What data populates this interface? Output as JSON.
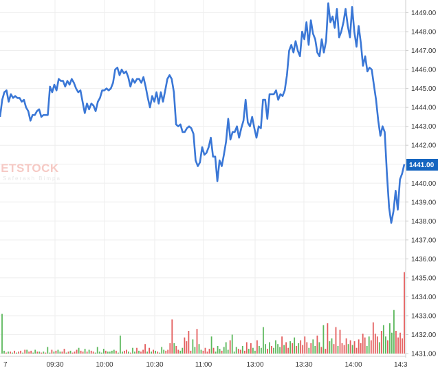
{
  "chart_data": {
    "type": "line",
    "title": "",
    "xlabel": "",
    "ylabel": "",
    "ylim": [
      1431,
      1449.5
    ],
    "y_ticks": [
      "1431.00",
      "1432.00",
      "1433.00",
      "1434.00",
      "1435.00",
      "1436.00",
      "1437.00",
      "1438.00",
      "1439.00",
      "1440.00",
      "1441.00",
      "1442.00",
      "1443.00",
      "1444.00",
      "1445.00",
      "1446.00",
      "1447.00",
      "1448.00",
      "1449.00"
    ],
    "x_ticks": [
      "09:30",
      "10:00",
      "10:30",
      "11:00",
      "13:00",
      "13:30",
      "14:00"
    ],
    "x_tick_edge_left": "7",
    "x_tick_edge_right": "14:3",
    "last_price_label": "1441.00",
    "grid": true,
    "line_color": "#3a77d6",
    "volume_up_color": "#5cb85c",
    "volume_down_color": "#e35d5d",
    "series": [
      {
        "values": [
          1443.5,
          1444.4,
          1444.8,
          1444.9,
          1444.3,
          1444.7,
          1444.5,
          1444.6,
          1444.5,
          1444.5,
          1444.3,
          1444.4,
          1444.0,
          1443.8,
          1443.3,
          1443.6,
          1443.6,
          1443.8,
          1443.9,
          1443.5,
          1443.6,
          1443.6,
          1443.6,
          1445.1,
          1444.8,
          1445.2,
          1444.9,
          1445.5,
          1445.4,
          1445.4,
          1445.1,
          1445.4,
          1445.2,
          1445.5,
          1445.3,
          1445.0,
          1444.8,
          1444.9,
          1444.3,
          1443.7,
          1444.2,
          1443.9,
          1444.2,
          1444.1,
          1443.8,
          1444.3,
          1444.5,
          1444.9,
          1444.9,
          1445.0,
          1444.9,
          1445.0,
          1445.3,
          1446.0,
          1446.1,
          1445.7,
          1446.0,
          1445.8,
          1445.9,
          1445.6,
          1445.1,
          1445.5,
          1445.3,
          1445.5,
          1445.5,
          1445.3,
          1445.6,
          1445.1,
          1444.5,
          1444.0,
          1444.6,
          1444.3,
          1444.8,
          1444.2,
          1444.8,
          1444.3,
          1444.9,
          1445.5,
          1445.7,
          1445.5,
          1444.8,
          1443.1,
          1443.0,
          1443.1,
          1442.7,
          1442.7,
          1442.9,
          1443.0,
          1442.9,
          1442.6,
          1441.2,
          1440.9,
          1441.1,
          1441.9,
          1441.5,
          1441.6,
          1441.9,
          1442.4,
          1441.4,
          1441.4,
          1440.1,
          1441.2,
          1440.9,
          1441.5,
          1442.2,
          1443.4,
          1442.3,
          1442.7,
          1442.7,
          1443.0,
          1442.4,
          1442.9,
          1443.3,
          1444.4,
          1443.2,
          1443.0,
          1443.5,
          1442.9,
          1442.4,
          1443.0,
          1442.9,
          1444.4,
          1444.4,
          1443.4,
          1444.7,
          1444.7,
          1444.7,
          1444.9,
          1444.4,
          1444.7,
          1444.6,
          1444.9,
          1445.7,
          1447.0,
          1447.3,
          1446.9,
          1447.5,
          1447.0,
          1446.7,
          1448.0,
          1447.6,
          1448.5,
          1447.3,
          1448.6,
          1447.9,
          1447.6,
          1446.9,
          1446.7,
          1447.6,
          1446.9,
          1447.5,
          1449.5,
          1448.5,
          1448.8,
          1448.2,
          1449.2,
          1447.7,
          1448.0,
          1448.5,
          1449.2,
          1448.3,
          1447.7,
          1449.3,
          1448.0,
          1447.2,
          1448.3,
          1447.4,
          1446.2,
          1446.7,
          1445.9,
          1446.1,
          1446.0,
          1445.2,
          1444.4,
          1443.3,
          1442.5,
          1443.0,
          1442.7,
          1440.5,
          1438.7,
          1437.9,
          1438.5,
          1439.6,
          1438.6,
          1440.2,
          1440.5,
          1441.0
        ]
      }
    ],
    "volume": [
      2.1,
      0.15,
      0.05,
      0.1,
      0.1,
      0.05,
      0.15,
      0.05,
      0.1,
      0.15,
      0.05,
      0.2,
      0.2,
      0.1,
      0.15,
      0.05,
      0.2,
      0.1,
      0.1,
      0.05,
      0.1,
      0.05,
      0.35,
      0.05,
      0.2,
      0.1,
      0.15,
      0.2,
      0.1,
      0.1,
      0.25,
      0.05,
      0.1,
      0.15,
      0.05,
      0.1,
      0.2,
      0.3,
      0.15,
      0.1,
      0.25,
      0.1,
      0.2,
      0.15,
      0.1,
      0.05,
      0.35,
      0.1,
      0.05,
      0.25,
      0.15,
      0.1,
      0.1,
      0.15,
      0.2,
      0.15,
      0.05,
      0.95,
      0.1,
      0.15,
      0.2,
      0.1,
      0.05,
      0.3,
      0.1,
      0.3,
      0.15,
      0.1,
      0.2,
      0.5,
      0.1,
      0.3,
      0.1,
      0.2,
      0.15,
      0.1,
      0.05,
      0.35,
      0.2,
      0.15,
      0.2,
      0.55,
      1.8,
      0.55,
      0.4,
      0.2,
      0.15,
      0.3,
      0.85,
      0.65,
      1.2,
      0.15,
      0.75,
      0.35,
      1.3,
      0.5,
      0.2,
      0.15,
      0.3,
      0.1,
      0.25,
      0.9,
      0.3,
      0.1,
      0.4,
      0.25,
      0.15,
      0.35,
      0.6,
      0.2,
      0.7,
      1.0,
      0.1,
      0.35,
      0.25,
      0.2,
      0.4,
      0.15,
      0.6,
      0.25,
      0.55,
      0.3,
      0.15,
      0.7,
      0.4,
      0.3,
      1.4,
      0.5,
      0.25,
      0.6,
      0.4,
      0.3,
      0.7,
      0.5,
      0.35,
      0.9,
      0.45,
      0.6,
      0.3,
      0.65,
      0.55,
      0.85,
      0.4,
      0.55,
      0.7,
      0.45,
      0.9,
      0.6,
      0.3,
      0.55,
      0.75,
      0.4,
      0.95,
      0.6,
      0.35,
      1.5,
      0.25,
      1.6,
      0.65,
      0.8,
      0.5,
      1.4,
      0.4,
      1.25,
      0.55,
      0.45,
      0.8,
      0.5,
      0.7,
      0.45,
      0.65,
      0.3,
      0.75,
      0.55,
      1.05,
      0.85,
      0.4,
      0.9,
      0.7,
      1.65,
      1.05,
      0.9,
      0.6,
      1.2,
      1.5,
      0.9,
      0.7,
      1.6,
      1.1,
      2.3,
      1.2,
      0.85,
      1.1,
      0.8,
      4.3
    ],
    "volume_up": [
      1,
      1,
      0,
      1,
      0,
      1,
      0,
      1,
      0,
      0,
      1,
      0,
      1,
      0,
      0,
      1,
      1,
      0,
      1,
      0,
      1,
      0,
      1,
      1,
      0,
      1,
      0,
      1,
      1,
      0,
      0,
      1,
      0,
      1,
      0,
      0,
      0,
      1,
      0,
      0,
      1,
      0,
      1,
      0,
      0,
      1,
      1,
      1,
      1,
      1,
      0,
      1,
      1,
      1,
      1,
      0,
      1,
      1,
      1,
      0,
      0,
      1,
      0,
      1,
      1,
      0,
      1,
      0,
      0,
      0,
      1,
      0,
      1,
      0,
      1,
      0,
      1,
      1,
      1,
      0,
      0,
      0,
      0,
      1,
      0,
      0,
      1,
      1,
      0,
      0,
      0,
      0,
      1,
      1,
      0,
      1,
      1,
      0,
      0,
      0,
      0,
      1,
      0,
      1,
      1,
      1,
      0,
      1,
      1,
      1,
      0,
      1,
      1,
      1,
      0,
      0,
      1,
      0,
      0,
      1,
      0,
      1,
      1,
      0,
      1,
      1,
      1,
      1,
      0,
      1,
      0,
      1,
      1,
      1,
      1,
      0,
      1,
      0,
      0,
      1,
      0,
      1,
      0,
      1,
      0,
      0,
      0,
      0,
      1,
      0,
      1,
      1,
      0,
      1,
      0,
      1,
      0,
      0,
      1,
      1,
      0,
      0,
      1,
      0,
      0,
      0,
      0,
      1,
      0,
      1,
      0,
      0,
      0,
      0,
      0,
      0,
      1,
      1,
      0,
      0,
      0,
      0,
      1,
      0,
      1,
      1,
      0,
      1,
      1,
      1
    ]
  }
}
